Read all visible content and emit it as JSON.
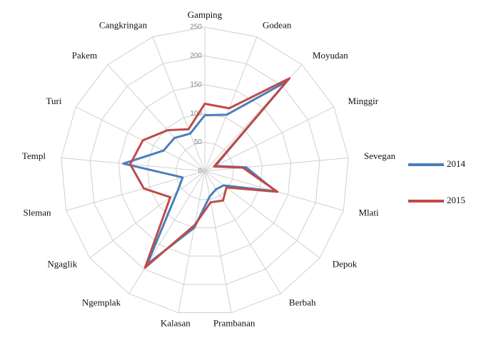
{
  "chart_data": {
    "type": "radar",
    "categories": [
      "Gamping",
      "Godean",
      "Moyudan",
      "Minggir",
      "Sevegan",
      "Mlati",
      "Depok",
      "Berbah",
      "Prambanan",
      "Kalasan",
      "Ngemplak",
      "Ngaglik",
      "Sleman",
      "Templ",
      "Turi",
      "Pakem",
      "Cangkringan"
    ],
    "series": [
      {
        "name": "2014",
        "color": "#4a7ebb",
        "values": [
          97,
          105,
          210,
          20,
          72,
          128,
          41,
          37,
          45,
          100,
          190,
          60,
          40,
          142,
          80,
          78,
          70
        ]
      },
      {
        "name": "2015",
        "color": "#be4b48",
        "values": [
          117,
          117,
          218,
          18,
          66,
          131,
          47,
          60,
          55,
          95,
          197,
          75,
          110,
          130,
          120,
          96,
          78
        ]
      }
    ],
    "ylim": [
      0,
      250
    ],
    "yticks": [
      0,
      50,
      100,
      150,
      200,
      250
    ],
    "grid": true,
    "legend": "right"
  }
}
